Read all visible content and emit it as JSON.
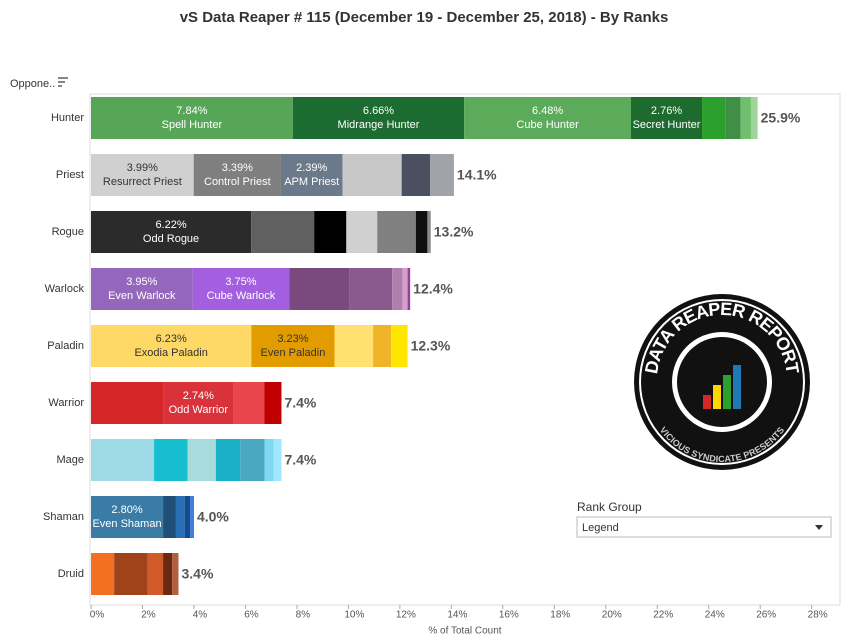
{
  "chart_data": {
    "type": "stacked-bar-horizontal",
    "title": "vS Data Reaper #  115 (December 19 - December 25, 2018) - By Ranks",
    "row_header": "Oppone..",
    "x_label": "% of Total Count",
    "xlim": [
      0,
      29.1
    ],
    "xticks": [
      {
        "value": 0,
        "label": "0%"
      },
      {
        "value": 2,
        "label": "2%"
      },
      {
        "value": 4,
        "label": "4%"
      },
      {
        "value": 6,
        "label": "6%"
      },
      {
        "value": 8,
        "label": "8%"
      },
      {
        "value": 10,
        "label": "10%"
      },
      {
        "value": 12,
        "label": "12%"
      },
      {
        "value": 14,
        "label": "14%"
      },
      {
        "value": 16,
        "label": "16%"
      },
      {
        "value": 18,
        "label": "18%"
      },
      {
        "value": 20,
        "label": "20%"
      },
      {
        "value": 22,
        "label": "22%"
      },
      {
        "value": 24,
        "label": "24%"
      },
      {
        "value": 26,
        "label": "26%"
      },
      {
        "value": 28,
        "label": "28%"
      }
    ],
    "rows": [
      {
        "name": "Hunter",
        "total": 25.9,
        "total_label": "25.9%",
        "segments": [
          {
            "value": 7.84,
            "value_label": "7.84%",
            "name": "Spell Hunter",
            "color": "#57a657"
          },
          {
            "value": 6.66,
            "value_label": "6.66%",
            "name": "Midrange Hunter",
            "color": "#1c6b30"
          },
          {
            "value": 6.48,
            "value_label": "6.48%",
            "name": "Cube Hunter",
            "color": "#5bab5b"
          },
          {
            "value": 2.76,
            "value_label": "2.76%",
            "name": "Secret Hunter",
            "color": "#1d6b2f"
          },
          {
            "value": 0.9,
            "color": "#2ca02c"
          },
          {
            "value": 0.6,
            "color": "#3f8f46"
          },
          {
            "value": 0.4,
            "color": "#6fbf6f"
          },
          {
            "value": 0.26,
            "color": "#9fd49a"
          }
        ]
      },
      {
        "name": "Priest",
        "total": 14.1,
        "total_label": "14.1%",
        "segments": [
          {
            "value": 3.99,
            "value_label": "3.99%",
            "name": "Resurrect Priest",
            "color": "#d0d0d0"
          },
          {
            "value": 3.39,
            "value_label": "3.39%",
            "name": "Control Priest",
            "color": "#7f7f7f"
          },
          {
            "value": 2.39,
            "value_label": "2.39%",
            "name": "APM Priest",
            "color": "#6b7a8a"
          },
          {
            "value": 2.3,
            "color": "#c8c8c8"
          },
          {
            "value": 1.1,
            "color": "#4a5060"
          },
          {
            "value": 0.93,
            "color": "#a0a4a8"
          }
        ]
      },
      {
        "name": "Rogue",
        "total": 13.2,
        "total_label": "13.2%",
        "segments": [
          {
            "value": 6.22,
            "value_label": "6.22%",
            "name": "Odd Rogue",
            "color": "#2b2b2b"
          },
          {
            "value": 2.45,
            "color": "#606060"
          },
          {
            "value": 1.25,
            "color": "#000000"
          },
          {
            "value": 1.2,
            "color": "#d0d0d0"
          },
          {
            "value": 1.5,
            "color": "#808080"
          },
          {
            "value": 0.45,
            "color": "#101010"
          },
          {
            "value": 0.13,
            "color": "#8a8a8a"
          }
        ]
      },
      {
        "name": "Warlock",
        "total": 12.4,
        "total_label": "12.4%",
        "segments": [
          {
            "value": 3.95,
            "value_label": "3.95%",
            "name": "Even Warlock",
            "color": "#9467bd"
          },
          {
            "value": 3.75,
            "value_label": "3.75%",
            "name": "Cube Warlock",
            "color": "#a45ee0"
          },
          {
            "value": 2.35,
            "color": "#7a4a7e"
          },
          {
            "value": 1.65,
            "color": "#8a5a8e"
          },
          {
            "value": 0.4,
            "color": "#b07fb0"
          },
          {
            "value": 0.2,
            "color": "#d4a0c8"
          },
          {
            "value": 0.1,
            "color": "#9b3d9b"
          }
        ]
      },
      {
        "name": "Paladin",
        "total": 12.3,
        "total_label": "12.3%",
        "segments": [
          {
            "value": 6.23,
            "value_label": "6.23%",
            "name": "Exodia Paladin",
            "color": "#ffd966"
          },
          {
            "value": 3.23,
            "value_label": "3.23%",
            "name": "Even Paladin",
            "color": "#e39c00"
          },
          {
            "value": 1.5,
            "color": "#ffe070"
          },
          {
            "value": 0.7,
            "color": "#f0b429"
          },
          {
            "value": 0.64,
            "color": "#ffe600"
          }
        ]
      },
      {
        "name": "Warrior",
        "total": 7.4,
        "total_label": "7.4%",
        "segments": [
          {
            "value": 2.8,
            "color": "#d62728"
          },
          {
            "value": 2.74,
            "value_label": "2.74%",
            "name": "Odd Warrior",
            "color": "#d9323a"
          },
          {
            "value": 1.2,
            "color": "#e8454c"
          },
          {
            "value": 0.66,
            "color": "#c00000"
          }
        ]
      },
      {
        "name": "Mage",
        "total": 7.4,
        "total_label": "7.4%",
        "segments": [
          {
            "value": 2.45,
            "color": "#9edae5"
          },
          {
            "value": 1.3,
            "color": "#17becf"
          },
          {
            "value": 1.1,
            "color": "#a8dcdc"
          },
          {
            "value": 0.95,
            "color": "#1ab0c8"
          },
          {
            "value": 0.95,
            "color": "#4aa8c0"
          },
          {
            "value": 0.35,
            "color": "#7fd8f0"
          },
          {
            "value": 0.3,
            "color": "#a0e8ff"
          }
        ]
      },
      {
        "name": "Shaman",
        "total": 4.0,
        "total_label": "4.0%",
        "segments": [
          {
            "value": 2.8,
            "value_label": "2.80%",
            "name": "Even Shaman",
            "color": "#3a7ca5"
          },
          {
            "value": 0.5,
            "color": "#1f4e79"
          },
          {
            "value": 0.35,
            "color": "#2a6fb5"
          },
          {
            "value": 0.2,
            "color": "#174a8b"
          },
          {
            "value": 0.15,
            "color": "#3b7dd8"
          }
        ]
      },
      {
        "name": "Druid",
        "total": 3.4,
        "total_label": "3.4%",
        "segments": [
          {
            "value": 0.9,
            "color": "#f36f21"
          },
          {
            "value": 1.3,
            "color": "#a0421a"
          },
          {
            "value": 0.6,
            "color": "#d05a2a"
          },
          {
            "value": 0.35,
            "color": "#6b2a10"
          },
          {
            "value": 0.25,
            "color": "#b06040"
          }
        ]
      }
    ]
  },
  "legend_panel": {
    "title": "Rank Group",
    "selected": "Legend"
  },
  "logo": {
    "title": "DATA REAPER REPORT",
    "subtitle": "VICIOUS SYNDICATE PRESENTS"
  }
}
